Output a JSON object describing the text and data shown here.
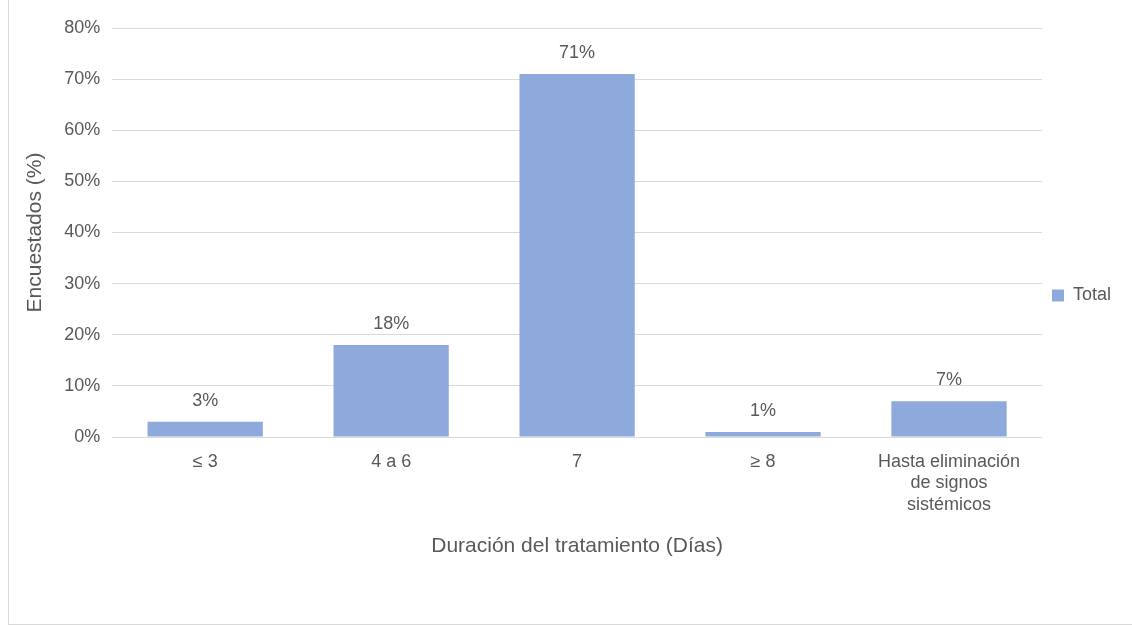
{
  "chart_data": {
    "type": "bar",
    "xlabel": "Duración del tratamiento (Días)",
    "ylabel": "Encuestados (%)",
    "categories": [
      "≤ 3",
      "4 a 6",
      "7",
      "≥ 8",
      "Hasta eliminación de signos sistémicos"
    ],
    "series": [
      {
        "name": "Total",
        "color": "#8eaadc",
        "values": [
          3,
          18,
          71,
          1,
          7
        ],
        "value_labels": [
          "3%",
          "18%",
          "71%",
          "1%",
          "7%"
        ]
      }
    ],
    "ylim": [
      0,
      80
    ],
    "yticks": [
      {
        "value": 0,
        "label": "0%"
      },
      {
        "value": 10,
        "label": "10%"
      },
      {
        "value": 20,
        "label": "20%"
      },
      {
        "value": 30,
        "label": "30%"
      },
      {
        "value": 40,
        "label": "40%"
      },
      {
        "value": 50,
        "label": "50%"
      },
      {
        "value": 60,
        "label": "60%"
      },
      {
        "value": 70,
        "label": "70%"
      },
      {
        "value": 80,
        "label": "80%"
      }
    ],
    "grid": "y",
    "legend": "right"
  }
}
